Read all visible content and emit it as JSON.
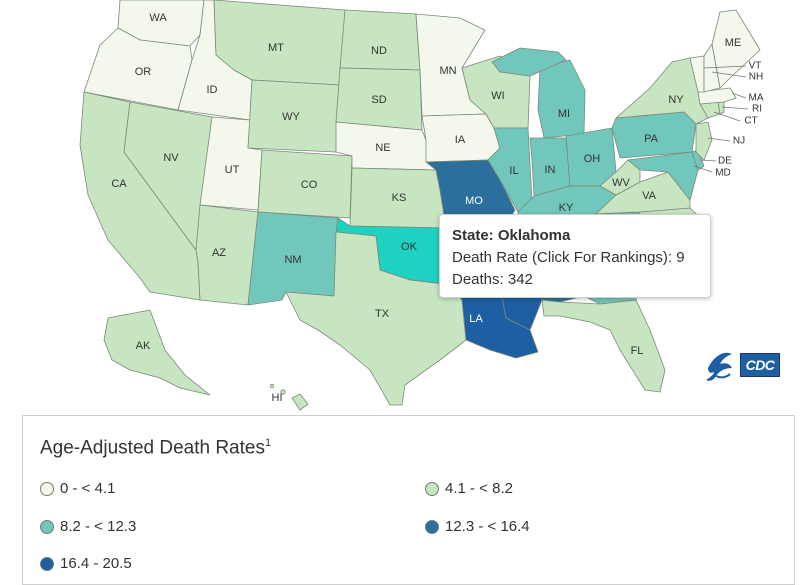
{
  "colors": {
    "c0": "#f4f7eb",
    "c1": "#c6e5c0",
    "c2": "#72c7bc",
    "c3": "#2b6f9c",
    "c4": "#1d5fa2",
    "highlight": "#1ed1c0"
  },
  "states": {
    "WA": {
      "label": "WA",
      "bin": "c0"
    },
    "OR": {
      "label": "OR",
      "bin": "c0"
    },
    "CA": {
      "label": "CA",
      "bin": "c1"
    },
    "ID": {
      "label": "ID",
      "bin": "c0"
    },
    "NV": {
      "label": "NV",
      "bin": "c1"
    },
    "UT": {
      "label": "UT",
      "bin": "c0"
    },
    "AZ": {
      "label": "AZ",
      "bin": "c1"
    },
    "MT": {
      "label": "MT",
      "bin": "c1"
    },
    "WY": {
      "label": "WY",
      "bin": "c1"
    },
    "CO": {
      "label": "CO",
      "bin": "c1"
    },
    "NM": {
      "label": "NM",
      "bin": "c2"
    },
    "ND": {
      "label": "ND",
      "bin": "c1"
    },
    "SD": {
      "label": "SD",
      "bin": "c1"
    },
    "NE": {
      "label": "NE",
      "bin": "c0"
    },
    "KS": {
      "label": "KS",
      "bin": "c1"
    },
    "OK": {
      "label": "OK",
      "bin": "highlight"
    },
    "TX": {
      "label": "TX",
      "bin": "c1"
    },
    "MN": {
      "label": "MN",
      "bin": "c0"
    },
    "IA": {
      "label": "IA",
      "bin": "c0"
    },
    "MO": {
      "label": "MO",
      "bin": "c3"
    },
    "AR": {
      "label": "",
      "bin": "c3"
    },
    "LA": {
      "label": "LA",
      "bin": "c4"
    },
    "WI": {
      "label": "WI",
      "bin": "c1"
    },
    "IL": {
      "label": "IL",
      "bin": "c2"
    },
    "MI": {
      "label": "MI",
      "bin": "c2"
    },
    "IN": {
      "label": "IN",
      "bin": "c2"
    },
    "OH": {
      "label": "OH",
      "bin": "c2"
    },
    "KY": {
      "label": "KY",
      "bin": "c2"
    },
    "TN": {
      "label": "",
      "bin": "c2"
    },
    "MS": {
      "label": "",
      "bin": "c4"
    },
    "AL": {
      "label": "",
      "bin": "c3"
    },
    "GA": {
      "label": "",
      "bin": "c2"
    },
    "FL": {
      "label": "FL",
      "bin": "c1"
    },
    "SC": {
      "label": "",
      "bin": "c1"
    },
    "NC": {
      "label": "",
      "bin": "c1"
    },
    "VA": {
      "label": "VA",
      "bin": "c1"
    },
    "WV": {
      "label": "WV",
      "bin": "c1"
    },
    "PA": {
      "label": "PA",
      "bin": "c2"
    },
    "NY": {
      "label": "NY",
      "bin": "c1"
    },
    "ME": {
      "label": "ME",
      "bin": "c0"
    },
    "VT": {
      "label": "VT",
      "bin": "c0"
    },
    "NH": {
      "label": "NH",
      "bin": "c0"
    },
    "MA": {
      "label": "MA",
      "bin": "c0"
    },
    "RI": {
      "label": "RI",
      "bin": "c1"
    },
    "CT": {
      "label": "CT",
      "bin": "c1"
    },
    "NJ": {
      "label": "NJ",
      "bin": "c1"
    },
    "DE": {
      "label": "DE",
      "bin": "c2"
    },
    "MD": {
      "label": "MD",
      "bin": "c2"
    },
    "AK": {
      "label": "AK",
      "bin": "c1"
    },
    "HI": {
      "label": "HI",
      "bin": "c1"
    }
  },
  "tooltip": {
    "title": "State: Oklahoma",
    "rate_line": "Death Rate (Click For Rankings): 9",
    "deaths_line": "Deaths: 342"
  },
  "logo": {
    "text": "CDC",
    "icon": "hhs-eagle-icon"
  },
  "legend": {
    "title": "Age-Adjusted Death Rates",
    "footnote": "1",
    "items": [
      {
        "label": "0 - < 4.1",
        "color": "#f4f7eb"
      },
      {
        "label": "4.1 - < 8.2",
        "color": "#c6e5c0"
      },
      {
        "label": "8.2 - < 12.3",
        "color": "#72c7bc"
      },
      {
        "label": "12.3 - < 16.4",
        "color": "#2b6f9c"
      },
      {
        "label": "16.4 - 20.5",
        "color": "#1d5fa2"
      }
    ]
  }
}
